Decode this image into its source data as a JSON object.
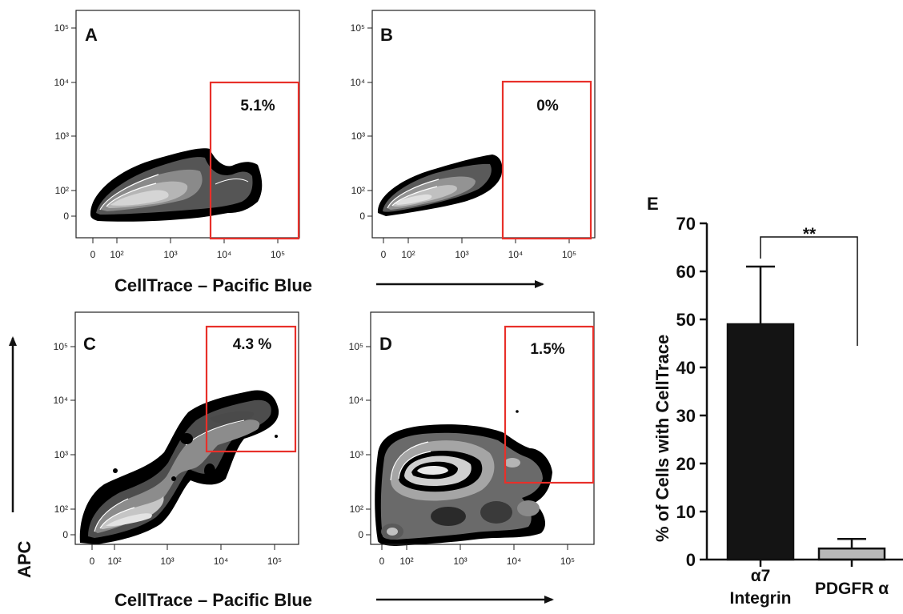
{
  "colors": {
    "gate": "#e8302a",
    "bar_alpha7": "#141414",
    "bar_pdgfra": "#b8b8b8",
    "ink": "#111111"
  },
  "chart_data": [
    {
      "type": "heatmap",
      "panel": "A",
      "gate_label": "5.1%",
      "gate_value_percent": 5.1,
      "xlabel": "CellTrace – Pacific Blue",
      "x_ticks": [
        "0",
        "10²",
        "10³",
        "10⁴",
        "10⁵"
      ],
      "y_ticks": [
        "0",
        "10²",
        "10³",
        "10⁴",
        "10⁵"
      ],
      "gate_x_range": [
        5000,
        250000
      ],
      "gate_y_range": [
        0,
        8000
      ]
    },
    {
      "type": "heatmap",
      "panel": "B",
      "gate_label": "0%",
      "gate_value_percent": 0,
      "xlabel": "CellTrace – Pacific Blue",
      "x_ticks": [
        "0",
        "10²",
        "10³",
        "10⁴",
        "10⁵"
      ],
      "y_ticks": [
        "0",
        "10²",
        "10³",
        "10⁴",
        "10⁵"
      ],
      "gate_x_range": [
        5000,
        250000
      ],
      "gate_y_range": [
        0,
        8000
      ]
    },
    {
      "type": "heatmap",
      "panel": "C",
      "gate_label": "4.3 %",
      "gate_value_percent": 4.3,
      "xlabel": "CellTrace – Pacific Blue",
      "ylabel": "APC",
      "x_ticks": [
        "0",
        "10²",
        "10³",
        "10⁴",
        "10⁵"
      ],
      "y_ticks": [
        "0",
        "10²",
        "10³",
        "10⁴",
        "10⁵"
      ],
      "gate_x_range": [
        5000,
        180000
      ],
      "gate_y_range": [
        1100,
        250000
      ]
    },
    {
      "type": "heatmap",
      "panel": "D",
      "gate_label": "1.5%",
      "gate_value_percent": 1.5,
      "xlabel": "CellTrace – Pacific Blue",
      "x_ticks": [
        "0",
        "10²",
        "10³",
        "10⁴",
        "10⁵"
      ],
      "y_ticks": [
        "0",
        "10²",
        "10³",
        "10⁴",
        "10⁵"
      ],
      "gate_x_range": [
        5500,
        260000
      ],
      "gate_y_range": [
        300,
        250000
      ]
    },
    {
      "type": "bar",
      "panel": "E",
      "ylabel": "% of Cells with CellTrace",
      "ylim": [
        0,
        70
      ],
      "y_ticks": [
        "0",
        "10",
        "20",
        "30",
        "40",
        "50",
        "60",
        "70"
      ],
      "categories": [
        "α7 Integrin",
        "PDGFR α"
      ],
      "category_lines": [
        [
          "α7",
          "Integrin"
        ],
        [
          "PDGFR α"
        ]
      ],
      "values": [
        49,
        2.3
      ],
      "errors": [
        12,
        2
      ],
      "significance": "**"
    }
  ]
}
